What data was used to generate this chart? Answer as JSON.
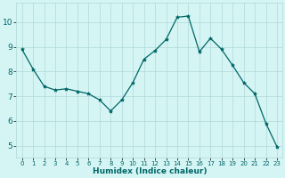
{
  "x": [
    0,
    1,
    2,
    3,
    4,
    5,
    6,
    7,
    8,
    9,
    10,
    11,
    12,
    13,
    14,
    15,
    16,
    17,
    18,
    19,
    20,
    21,
    22,
    23
  ],
  "y": [
    8.9,
    8.1,
    7.4,
    7.25,
    7.3,
    7.2,
    7.1,
    6.85,
    6.4,
    6.85,
    7.55,
    8.5,
    8.85,
    9.3,
    10.2,
    10.25,
    8.8,
    9.35,
    8.9,
    8.25,
    7.55,
    7.1,
    5.9,
    4.95
  ],
  "xlabel": "Humidex (Indice chaleur)",
  "xlim": [
    -0.5,
    23.5
  ],
  "ylim": [
    4.5,
    10.8
  ],
  "yticks": [
    5,
    6,
    7,
    8,
    9,
    10
  ],
  "xticks": [
    0,
    1,
    2,
    3,
    4,
    5,
    6,
    7,
    8,
    9,
    10,
    11,
    12,
    13,
    14,
    15,
    16,
    17,
    18,
    19,
    20,
    21,
    22,
    23
  ],
  "line_color": "#006666",
  "marker_color": "#006666",
  "bg_color": "#d5f5f5",
  "grid_color": "#b0d8d8",
  "tick_label_color": "#006666",
  "xlabel_color": "#006666",
  "tick_fontsize": 5.0,
  "xlabel_fontsize": 6.5,
  "ytick_fontsize": 6.5,
  "linewidth": 0.9,
  "markersize": 3.0
}
